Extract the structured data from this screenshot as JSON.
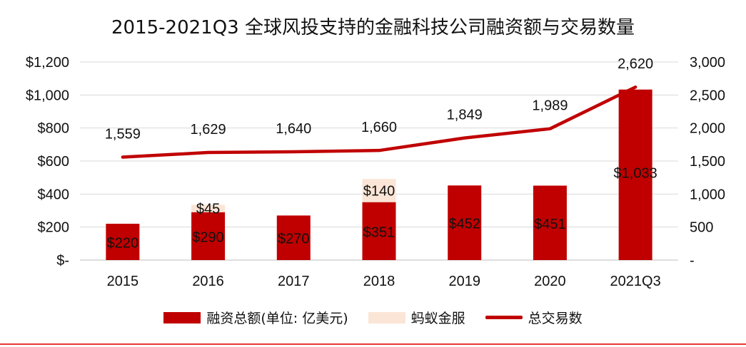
{
  "chart_data": {
    "type": "bar",
    "title": "2015-2021Q3 全球风投支持的金融科技公司融资额与交易数量",
    "categories": [
      "2015",
      "2016",
      "2017",
      "2018",
      "2019",
      "2020",
      "2021Q3"
    ],
    "series": [
      {
        "name": "融资总额(单位: 亿美元)",
        "kind": "bar",
        "axis": "left",
        "color": "#c00000",
        "values": [
          220,
          290,
          270,
          351,
          452,
          451,
          1033
        ],
        "labels": [
          "$220",
          "$290",
          "$270",
          "$351",
          "$452",
          "$451",
          "$1,033"
        ]
      },
      {
        "name": "蚂蚁金服",
        "kind": "stacked-bar",
        "axis": "left",
        "color": "#fbe5d6",
        "values": [
          0,
          45,
          0,
          140,
          0,
          0,
          0
        ],
        "labels": [
          "",
          "$45",
          "",
          "$140",
          "",
          "",
          ""
        ]
      },
      {
        "name": "总交易数",
        "kind": "line",
        "axis": "right",
        "color": "#c00000",
        "values": [
          1559,
          1629,
          1640,
          1660,
          1849,
          1989,
          2620
        ],
        "labels": [
          "1,559",
          "1,629",
          "1,640",
          "1,660",
          "1,849",
          "1,989",
          "2,620"
        ]
      }
    ],
    "ylim": [
      0,
      1200
    ],
    "yticks": [
      0,
      200,
      400,
      600,
      800,
      1000,
      1200
    ],
    "ytick_labels": [
      "$-",
      "$200",
      "$400",
      "$600",
      "$800",
      "$1,000",
      "$1,200"
    ],
    "y2lim": [
      0,
      3000
    ],
    "y2ticks": [
      0,
      500,
      1000,
      1500,
      2000,
      2500,
      3000
    ],
    "y2tick_labels": [
      "-",
      "500",
      "1,000",
      "1,500",
      "2,000",
      "2,500",
      "3,000"
    ],
    "grid": true,
    "legend_position": "bottom"
  }
}
